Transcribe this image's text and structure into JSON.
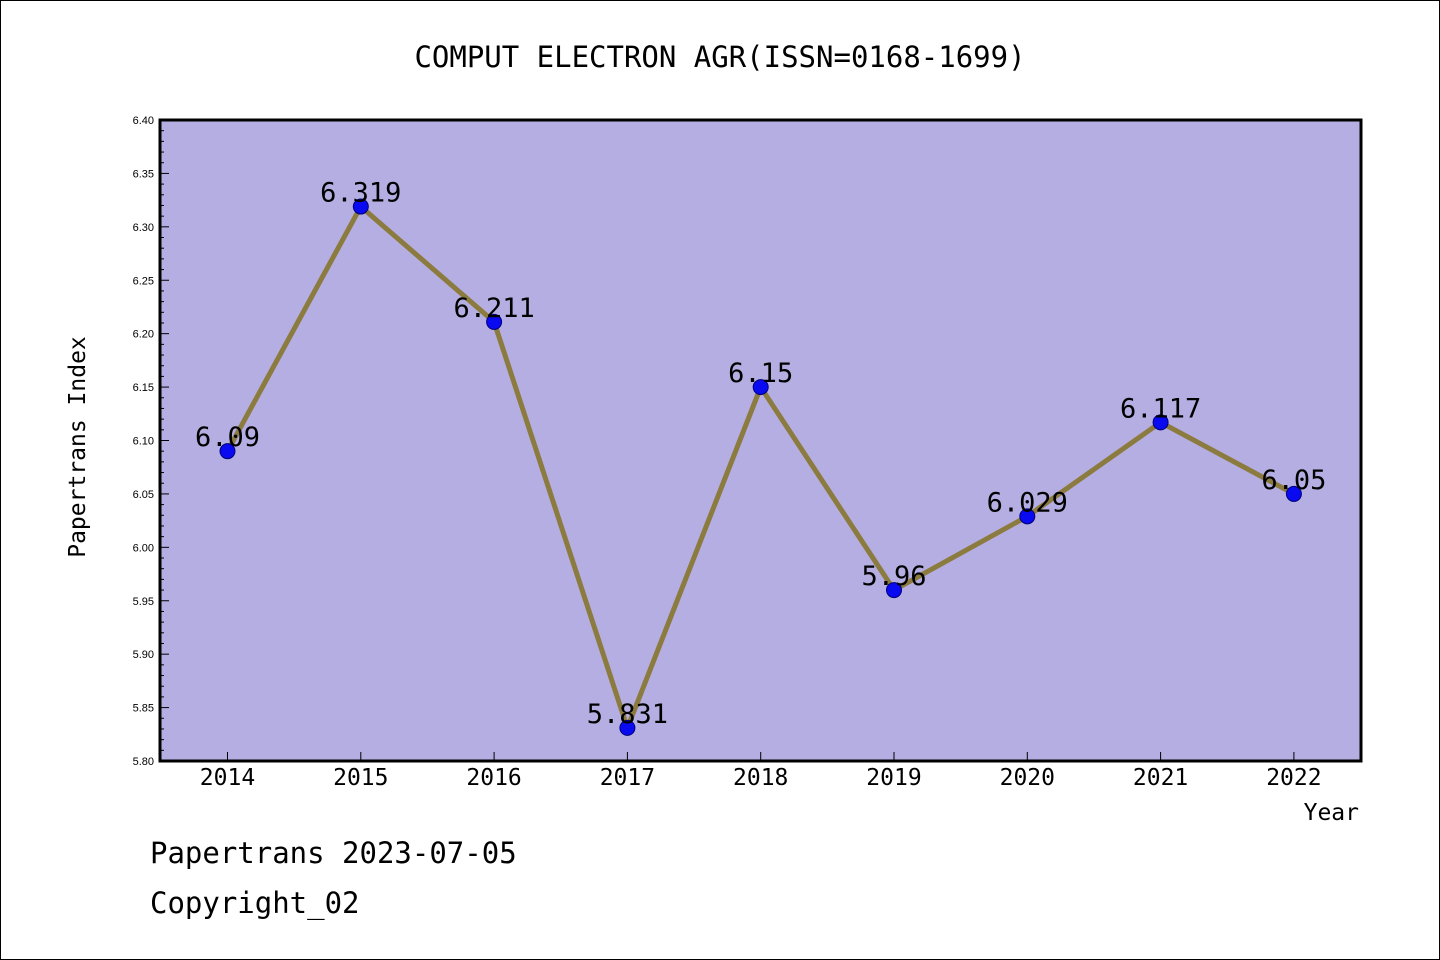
{
  "footer": {
    "credit": "Papertrans 2023-07-05",
    "copyright": "Copyright_02"
  },
  "chart_data": {
    "type": "line",
    "title": "COMPUT ELECTRON AGR(ISSN=0168-1699)",
    "xlabel": "Year",
    "ylabel": "Papertrans Index",
    "x": [
      "2014",
      "2015",
      "2016",
      "2017",
      "2018",
      "2019",
      "2020",
      "2021",
      "2022"
    ],
    "series": [
      {
        "values": [
          6.09,
          6.319,
          6.211,
          5.831,
          6.15,
          5.96,
          6.029,
          6.117,
          6.05
        ],
        "labels": [
          "6.09",
          "6.319",
          "6.211",
          "5.831",
          "6.15",
          "5.96",
          "6.029",
          "6.117",
          "6.05"
        ]
      }
    ],
    "ylim": [
      5.8,
      6.4
    ],
    "yticks": [
      "5.80",
      "5.85",
      "5.90",
      "5.95",
      "6.00",
      "6.05",
      "6.10",
      "6.15",
      "6.20",
      "6.25",
      "6.30",
      "6.35",
      "6.40"
    ],
    "grid": false,
    "colors": {
      "plot_background": "#b5aee2",
      "line": "#8b7b3e",
      "marker": "#0a0af0",
      "marker_edge": "#00007a"
    }
  }
}
